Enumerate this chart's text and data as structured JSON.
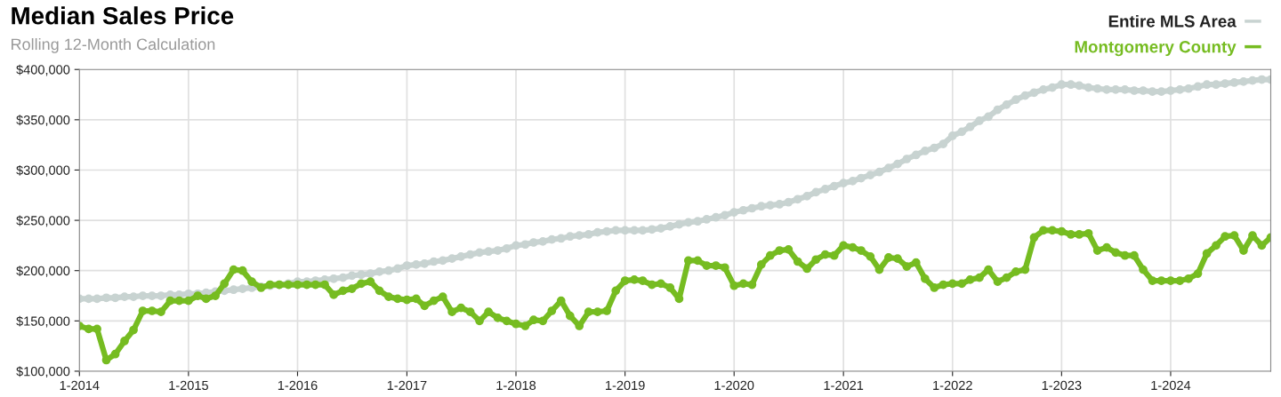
{
  "chart_data": {
    "type": "line",
    "title": "Median Sales Price",
    "subtitle": "Rolling 12-Month Calculation",
    "x": [
      "2014-01",
      "2014-02",
      "2014-03",
      "2014-04",
      "2014-05",
      "2014-06",
      "2014-07",
      "2014-08",
      "2014-09",
      "2014-10",
      "2014-11",
      "2014-12",
      "2015-01",
      "2015-02",
      "2015-03",
      "2015-04",
      "2015-05",
      "2015-06",
      "2015-07",
      "2015-08",
      "2015-09",
      "2015-10",
      "2015-11",
      "2015-12",
      "2016-01",
      "2016-02",
      "2016-03",
      "2016-04",
      "2016-05",
      "2016-06",
      "2016-07",
      "2016-08",
      "2016-09",
      "2016-10",
      "2016-11",
      "2016-12",
      "2017-01",
      "2017-02",
      "2017-03",
      "2017-04",
      "2017-05",
      "2017-06",
      "2017-07",
      "2017-08",
      "2017-09",
      "2017-10",
      "2017-11",
      "2017-12",
      "2018-01",
      "2018-02",
      "2018-03",
      "2018-04",
      "2018-05",
      "2018-06",
      "2018-07",
      "2018-08",
      "2018-09",
      "2018-10",
      "2018-11",
      "2018-12",
      "2019-01",
      "2019-02",
      "2019-03",
      "2019-04",
      "2019-05",
      "2019-06",
      "2019-07",
      "2019-08",
      "2019-09",
      "2019-10",
      "2019-11",
      "2019-12",
      "2020-01",
      "2020-02",
      "2020-03",
      "2020-04",
      "2020-05",
      "2020-06",
      "2020-07",
      "2020-08",
      "2020-09",
      "2020-10",
      "2020-11",
      "2020-12",
      "2021-01",
      "2021-02",
      "2021-03",
      "2021-04",
      "2021-05",
      "2021-06",
      "2021-07",
      "2021-08",
      "2021-09",
      "2021-10",
      "2021-11",
      "2021-12",
      "2022-01",
      "2022-02",
      "2022-03",
      "2022-04",
      "2022-05",
      "2022-06",
      "2022-07",
      "2022-08",
      "2022-09",
      "2022-10",
      "2022-11",
      "2022-12",
      "2023-01",
      "2023-02",
      "2023-03",
      "2023-04",
      "2023-05",
      "2023-06",
      "2023-07",
      "2023-08",
      "2023-09",
      "2023-10",
      "2023-11",
      "2023-12",
      "2024-01",
      "2024-02",
      "2024-03",
      "2024-04",
      "2024-05",
      "2024-06",
      "2024-07",
      "2024-08",
      "2024-09",
      "2024-10",
      "2024-11",
      "2024-12"
    ],
    "series": [
      {
        "name": "Entire MLS Area",
        "color": "#c8d3d1",
        "values": [
          172000,
          172000,
          172000,
          173000,
          173000,
          174000,
          174000,
          175000,
          175000,
          175000,
          176000,
          176000,
          177000,
          177000,
          178000,
          179000,
          180000,
          181000,
          182000,
          183000,
          184000,
          185000,
          186000,
          187000,
          189000,
          189000,
          190000,
          191000,
          192000,
          193000,
          195000,
          196000,
          197000,
          199000,
          200000,
          202000,
          205000,
          206000,
          207000,
          209000,
          210000,
          212000,
          214000,
          216000,
          218000,
          219000,
          220000,
          222000,
          225000,
          226000,
          228000,
          229000,
          231000,
          232000,
          234000,
          235000,
          236000,
          238000,
          239000,
          240000,
          240000,
          240000,
          240000,
          241000,
          242000,
          244000,
          246000,
          248000,
          249000,
          251000,
          253000,
          255000,
          258000,
          260000,
          262000,
          264000,
          265000,
          266000,
          268000,
          271000,
          274000,
          278000,
          281000,
          284000,
          287000,
          289000,
          292000,
          295000,
          298000,
          302000,
          306000,
          311000,
          315000,
          319000,
          322000,
          326000,
          334000,
          338000,
          343000,
          349000,
          353000,
          360000,
          365000,
          370000,
          374000,
          377000,
          380000,
          382000,
          385000,
          385000,
          384000,
          382000,
          381000,
          380000,
          380000,
          380000,
          379000,
          379000,
          378000,
          378000,
          379000,
          380000,
          381000,
          383000,
          385000,
          385000,
          386000,
          387000,
          388000,
          389000,
          390000,
          390000
        ]
      },
      {
        "name": "Montgomery County",
        "color": "#76bc21",
        "values": [
          145000,
          142000,
          142000,
          111000,
          117000,
          130000,
          141000,
          160000,
          160000,
          159000,
          170000,
          170000,
          170000,
          175000,
          172000,
          175000,
          187000,
          201000,
          200000,
          189000,
          183000,
          186000,
          186000,
          186000,
          186000,
          186000,
          186000,
          186000,
          176000,
          180000,
          182000,
          187000,
          189000,
          180000,
          174000,
          172000,
          171000,
          172000,
          165000,
          170000,
          174000,
          159000,
          163000,
          159000,
          150000,
          159000,
          153000,
          150000,
          147000,
          145000,
          151000,
          150000,
          160000,
          170000,
          155000,
          145000,
          159000,
          159000,
          160000,
          180000,
          190000,
          191000,
          190000,
          186000,
          187000,
          183000,
          172000,
          210000,
          210000,
          205000,
          205000,
          203000,
          185000,
          187000,
          186000,
          206000,
          215000,
          220000,
          221000,
          209000,
          202000,
          211000,
          216000,
          215000,
          225000,
          223000,
          220000,
          214000,
          201000,
          213000,
          212000,
          204000,
          208000,
          192000,
          183000,
          186000,
          187000,
          187000,
          191000,
          193000,
          201000,
          189000,
          193000,
          199000,
          201000,
          233000,
          240000,
          240000,
          239000,
          236000,
          236000,
          237000,
          220000,
          223000,
          218000,
          215000,
          215000,
          201000,
          190000,
          190000,
          190000,
          190000,
          192000,
          197000,
          217000,
          225000,
          234000,
          235000,
          220000,
          235000,
          225000,
          233000
        ]
      }
    ],
    "xlim": [
      "2014-01",
      "2024-12"
    ],
    "xticks": [
      {
        "value": "2014-01",
        "label": "1-2014"
      },
      {
        "value": "2015-01",
        "label": "1-2015"
      },
      {
        "value": "2016-01",
        "label": "1-2016"
      },
      {
        "value": "2017-01",
        "label": "1-2017"
      },
      {
        "value": "2018-01",
        "label": "1-2018"
      },
      {
        "value": "2019-01",
        "label": "1-2019"
      },
      {
        "value": "2020-01",
        "label": "1-2020"
      },
      {
        "value": "2021-01",
        "label": "1-2021"
      },
      {
        "value": "2022-01",
        "label": "1-2022"
      },
      {
        "value": "2023-01",
        "label": "1-2023"
      },
      {
        "value": "2024-01",
        "label": "1-2024"
      }
    ],
    "ylim": [
      100000,
      400000
    ],
    "yticks": [
      {
        "value": 100000,
        "label": "$100,000"
      },
      {
        "value": 150000,
        "label": "$150,000"
      },
      {
        "value": 200000,
        "label": "$200,000"
      },
      {
        "value": 250000,
        "label": "$250,000"
      },
      {
        "value": 300000,
        "label": "$300,000"
      },
      {
        "value": 350000,
        "label": "$350,000"
      },
      {
        "value": 400000,
        "label": "$400,000"
      }
    ],
    "grid": true,
    "legend": "top right",
    "marker": "circle",
    "line_style": "solid"
  }
}
